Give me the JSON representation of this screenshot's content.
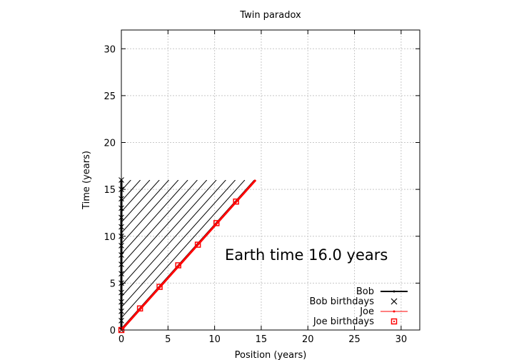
{
  "chart_data": {
    "type": "line",
    "title": "Twin paradox",
    "xlabel": "Position (years)",
    "ylabel": "Time (years)",
    "xlim": [
      0,
      32
    ],
    "ylim": [
      0,
      32
    ],
    "xticks": [
      0,
      5,
      10,
      15,
      20,
      25,
      30
    ],
    "yticks": [
      0,
      5,
      10,
      15,
      20,
      25,
      30
    ],
    "grid": true,
    "legend_position": "bottom-right",
    "annotation": "Earth time 16.0 years",
    "series": [
      {
        "name": "Bob",
        "color": "#000000",
        "x": [
          0,
          0
        ],
        "y": [
          0,
          16
        ]
      },
      {
        "name": "Bob birthdays",
        "marker": "x",
        "color": "#000000",
        "x": [
          0,
          0,
          0,
          0,
          0,
          0,
          0,
          0,
          0,
          0,
          0,
          0,
          0,
          0,
          0,
          0,
          0
        ],
        "y": [
          0,
          1,
          2,
          3,
          4,
          5,
          6,
          7,
          8,
          9,
          10,
          11,
          12,
          13,
          14,
          15,
          16
        ]
      },
      {
        "name": "Joe",
        "color": "#ff0000",
        "x": [
          0,
          14.4
        ],
        "y": [
          0,
          16
        ]
      },
      {
        "name": "Joe birthdays",
        "marker": "square",
        "color": "#ff0000",
        "x": [
          0,
          2.0,
          4.1,
          6.1,
          8.2,
          10.2,
          12.3
        ],
        "y": [
          0,
          2.3,
          4.6,
          6.9,
          9.1,
          11.4,
          13.7
        ]
      }
    ],
    "shaded_region": {
      "description": "hatched",
      "vertices": [
        [
          0,
          0
        ],
        [
          14.4,
          16
        ],
        [
          0,
          16
        ]
      ]
    }
  }
}
